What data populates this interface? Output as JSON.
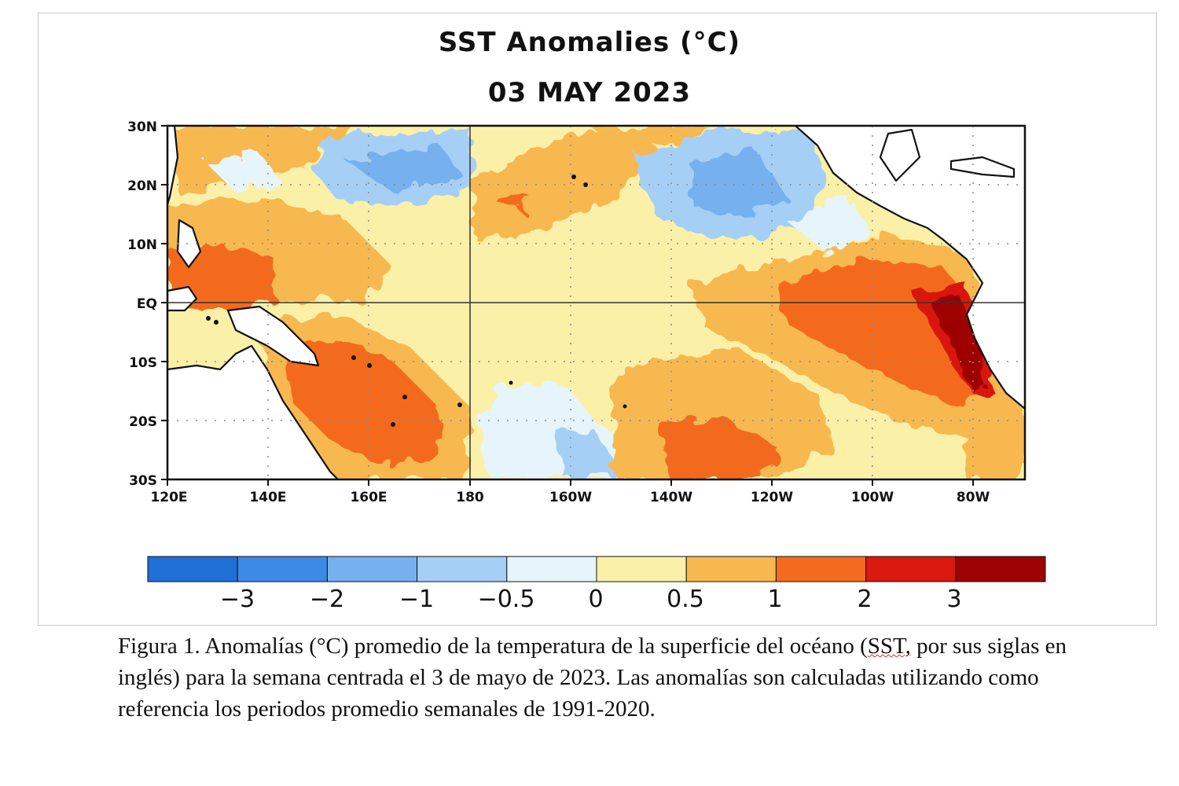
{
  "title": "SST Anomalies (°C)",
  "date": "03 MAY 2023",
  "map": {
    "lat_labels": [
      "30N",
      "20N",
      "10N",
      "EQ",
      "10S",
      "20S",
      "30S"
    ],
    "lon_labels": [
      "120E",
      "140E",
      "160E",
      "180",
      "160W",
      "140W",
      "120W",
      "100W",
      "80W"
    ]
  },
  "colorbar": {
    "tick_labels": [
      "−3",
      "−2",
      "−1",
      "−0.5",
      "0",
      "0.5",
      "1",
      "2",
      "3"
    ],
    "colors": [
      "#1f6fd6",
      "#3b8ae6",
      "#76b0ef",
      "#a6cff5",
      "#e6f5fc",
      "#fbf0a8",
      "#f7b850",
      "#f46a1e",
      "#d9180f",
      "#9e0203"
    ]
  },
  "caption": {
    "part1": "Figura 1. Anomalías (°C) promedio de la temperatura de la superficie del océano (",
    "sst": "SST,",
    "part2": " por sus siglas en inglés) para la semana centrada el 3 de mayo de 2023. Las anomalías son calculadas utilizando como referencia los periodos promedio semanales de 1991-2020."
  }
}
